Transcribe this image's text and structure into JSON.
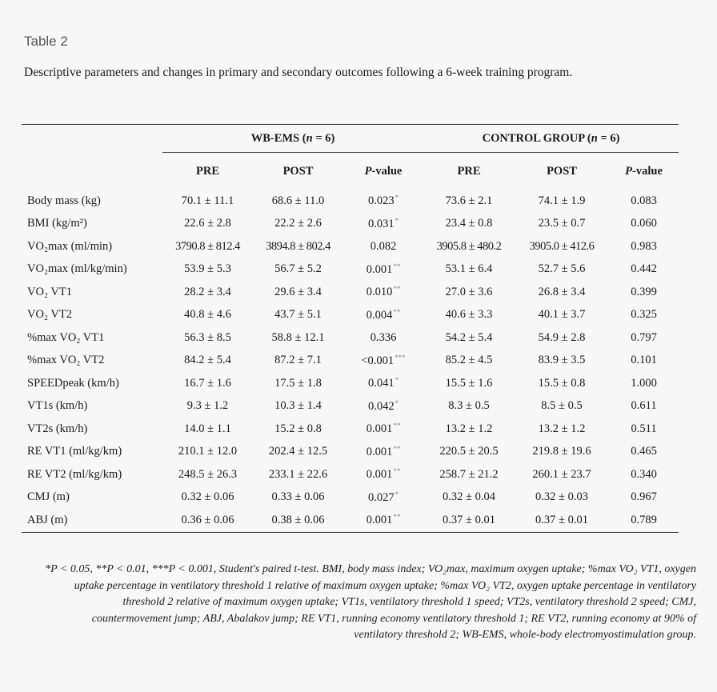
{
  "table_label": "Table 2",
  "caption": "Descriptive parameters and changes in primary and secondary outcomes following a 6-week training program.",
  "groups": {
    "wb_ems": "WB-EMS (n = 6)",
    "control": "CONTROL GROUP (n = 6)"
  },
  "columns": [
    "PRE",
    "POST",
    "P-value",
    "PRE",
    "POST",
    "P-value"
  ],
  "rows": [
    {
      "label": "Body mass (kg)",
      "wb_pre": "70.1 ± 11.1",
      "wb_post": "68.6 ± 11.0",
      "wb_p": "0.023",
      "wb_sig": "*",
      "c_pre": "73.6 ± 2.1",
      "c_post": "74.1 ± 1.9",
      "c_p": "0.083"
    },
    {
      "label": "BMI (kg/m²)",
      "wb_pre": "22.6 ± 2.8",
      "wb_post": "22.2 ± 2.6",
      "wb_p": "0.031",
      "wb_sig": "*",
      "c_pre": "23.4 ± 0.8",
      "c_post": "23.5 ± 0.7",
      "c_p": "0.060"
    },
    {
      "label": "VO₂max (ml/min)",
      "wb_pre": "3790.8 ± 812.4",
      "wb_post": "3894.8 ± 802.4",
      "wb_p": "0.082",
      "wb_sig": "",
      "c_pre": "3905.8 ± 480.2",
      "c_post": "3905.0 ± 412.6",
      "c_p": "0.983"
    },
    {
      "label": "VO₂max (ml/kg/min)",
      "wb_pre": "53.9 ± 5.3",
      "wb_post": "56.7 ± 5.2",
      "wb_p": "0.001",
      "wb_sig": "**",
      "c_pre": "53.1 ± 6.4",
      "c_post": "52.7 ± 5.6",
      "c_p": "0.442"
    },
    {
      "label": "VO₂ VT1",
      "wb_pre": "28.2 ± 3.4",
      "wb_post": "29.6 ± 3.4",
      "wb_p": "0.010",
      "wb_sig": "**",
      "c_pre": "27.0 ± 3.6",
      "c_post": "26.8 ± 3.4",
      "c_p": "0.399"
    },
    {
      "label": "VO₂ VT2",
      "wb_pre": "40.8 ± 4.6",
      "wb_post": "43.7 ± 5.1",
      "wb_p": "0.004",
      "wb_sig": "**",
      "c_pre": "40.6 ± 3.3",
      "c_post": "40.1 ± 3.7",
      "c_p": "0.325"
    },
    {
      "label": "%max VO₂ VT1",
      "wb_pre": "56.3 ± 8.5",
      "wb_post": "58.8 ± 12.1",
      "wb_p": "0.336",
      "wb_sig": "",
      "c_pre": "54.2 ± 5.4",
      "c_post": "54.9 ± 2.8",
      "c_p": "0.797"
    },
    {
      "label": "%max VO₂ VT2",
      "wb_pre": "84.2 ± 5.4",
      "wb_post": "87.2 ± 7.1",
      "wb_p": "<0.001",
      "wb_sig": "***",
      "c_pre": "85.2 ± 4.5",
      "c_post": "83.9 ± 3.5",
      "c_p": "0.101"
    },
    {
      "label": "SPEEDpeak (km/h)",
      "wb_pre": "16.7 ± 1.6",
      "wb_post": "17.5 ± 1.8",
      "wb_p": "0.041",
      "wb_sig": "*",
      "c_pre": "15.5 ± 1.6",
      "c_post": "15.5 ± 0.8",
      "c_p": "1.000"
    },
    {
      "label": "VT1s (km/h)",
      "wb_pre": "9.3 ± 1.2",
      "wb_post": "10.3 ± 1.4",
      "wb_p": "0.042",
      "wb_sig": "*",
      "c_pre": "8.3 ± 0.5",
      "c_post": "8.5 ± 0.5",
      "c_p": "0.611"
    },
    {
      "label": "VT2s (km/h)",
      "wb_pre": "14.0 ± 1.1",
      "wb_post": "15.2 ± 0.8",
      "wb_p": "0.001",
      "wb_sig": "**",
      "c_pre": "13.2 ± 1.2",
      "c_post": "13.2 ± 1.2",
      "c_p": "0.511"
    },
    {
      "label": "RE VT1 (ml/kg/km)",
      "wb_pre": "210.1 ± 12.0",
      "wb_post": "202.4 ± 12.5",
      "wb_p": "0.001",
      "wb_sig": "**",
      "c_pre": "220.5 ± 20.5",
      "c_post": "219.8 ± 19.6",
      "c_p": "0.465"
    },
    {
      "label": "RE VT2 (ml/kg/km)",
      "wb_pre": "248.5 ± 26.3",
      "wb_post": "233.1 ± 22.6",
      "wb_p": "0.001",
      "wb_sig": "**",
      "c_pre": "258.7 ± 21.2",
      "c_post": "260.1 ± 23.7",
      "c_p": "0.340"
    },
    {
      "label": "CMJ (m)",
      "wb_pre": "0.32 ± 0.06",
      "wb_post": "0.33 ± 0.06",
      "wb_p": "0.027",
      "wb_sig": "*",
      "c_pre": "0.32 ± 0.04",
      "c_post": "0.32 ± 0.03",
      "c_p": "0.967"
    },
    {
      "label": "ABJ (m)",
      "wb_pre": "0.36 ± 0.06",
      "wb_post": "0.38 ± 0.06",
      "wb_p": "0.001",
      "wb_sig": "**",
      "c_pre": "0.37 ± 0.01",
      "c_post": "0.37 ± 0.01",
      "c_p": "0.789"
    }
  ],
  "footnote": "*P < 0.05, **P < 0.01, ***P < 0.001, Student's paired t-test. BMI, body mass index; VO₂max, maximum oxygen uptake; %max VO₂ VT1, oxygen uptake percentage in ventilatory threshold 1 relative of maximum oxygen uptake; %max VO₂ VT2, oxygen uptake percentage in ventilatory threshold 2 relative of maximum oxygen uptake; VT1s, ventilatory threshold 1 speed; VT2s, ventilatory threshold 2 speed; CMJ, countermovement jump; ABJ, Abalakov jump; RE VT1, running economy ventilatory threshold 1; RE VT2, running economy at 90% of ventilatory threshold 2; WB-EMS, whole-body electromyostimulation group."
}
